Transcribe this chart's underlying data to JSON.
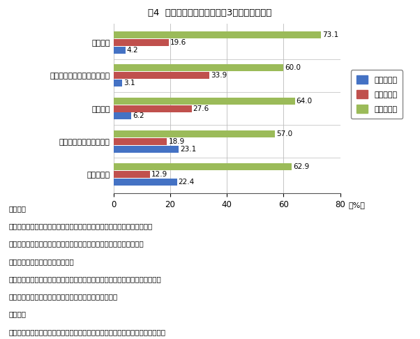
{
  "title": "図4  県内経済圏域別、産業（3部門）別構成比",
  "categories": [
    "松山圏域",
    "新居浜・西条・四国中央圏域",
    "今治圏域",
    "八幡浜・大洲・西予圏域",
    "宇和島圏域"
  ],
  "series": [
    {
      "name": "第１次産業",
      "color": "#4472C4",
      "values": [
        4.2,
        3.1,
        6.2,
        23.1,
        22.4
      ]
    },
    {
      "name": "第２次産業",
      "color": "#C0504D",
      "values": [
        19.6,
        33.9,
        27.6,
        18.9,
        12.9
      ]
    },
    {
      "name": "第３次産業",
      "color": "#9BBB59",
      "values": [
        73.1,
        60.0,
        64.0,
        57.0,
        62.9
      ]
    }
  ],
  "xlim": [
    0,
    80
  ],
  "xticks": [
    0,
    20,
    40,
    60,
    80
  ],
  "xlabel": "（%）",
  "note1_title": "（注１）",
  "notes": [
    "　【松山圏域】：松山市、伊予市、東温市、久万高原町、松前町、砥部町",
    "　【新居浜・西条・四国中央圏域】：新居浜市、西条市、四国中央市",
    "　【今治圏域】：今治市、上島町",
    "　【八幡浜・大洲・西予圏域】：八幡浜市、大洲市、西予市、内子町、伊方町",
    "　【宇和島圏域】：宇和島市、松野町、鬼北町、愛南町"
  ],
  "note2_title": "（注２）",
  "note2": "　分類不能の産業を含む有業者総数に対する、産業別の構成比を表しています。",
  "bar_height": 0.23,
  "figsize": [
    6.02,
    4.86
  ],
  "dpi": 100,
  "bg_color": "#FFFFFF"
}
